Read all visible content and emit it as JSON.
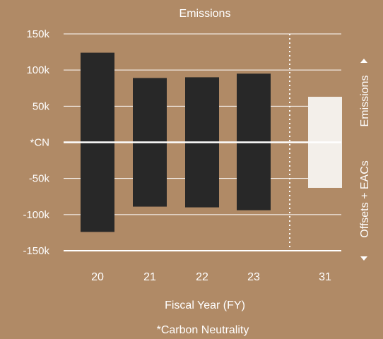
{
  "chart_data": {
    "type": "bar",
    "title": "Emissions",
    "xlabel": "Fiscal Year (FY)",
    "footnote": "*Carbon Neutrality",
    "right_label_top": "Emissions",
    "right_label_bottom": "Offsets + EACs",
    "ylim": [
      -150000,
      150000
    ],
    "yticks": [
      {
        "value": 150000,
        "label": "150k"
      },
      {
        "value": 100000,
        "label": "100k"
      },
      {
        "value": 50000,
        "label": "50k"
      },
      {
        "value": 0,
        "label": "*CN"
      },
      {
        "value": -50000,
        "label": "-50k"
      },
      {
        "value": -100000,
        "label": "-100k"
      },
      {
        "value": -150000,
        "label": "-150k"
      }
    ],
    "categories": [
      "20",
      "21",
      "22",
      "23",
      "31"
    ],
    "series": [
      {
        "values": [
          124000,
          89000,
          90000,
          95000,
          63000
        ]
      },
      {
        "values": [
          -124000,
          -89000,
          -90000,
          -94000,
          -63000
        ]
      }
    ],
    "target_categories": [
      "31"
    ],
    "divider_after": "23",
    "colors": {
      "background": "#b08a66",
      "actual_bar": "#282828",
      "target_bar": "#f3efea",
      "text": "#ffffff",
      "grid": "#ffffff"
    },
    "grid": true
  }
}
